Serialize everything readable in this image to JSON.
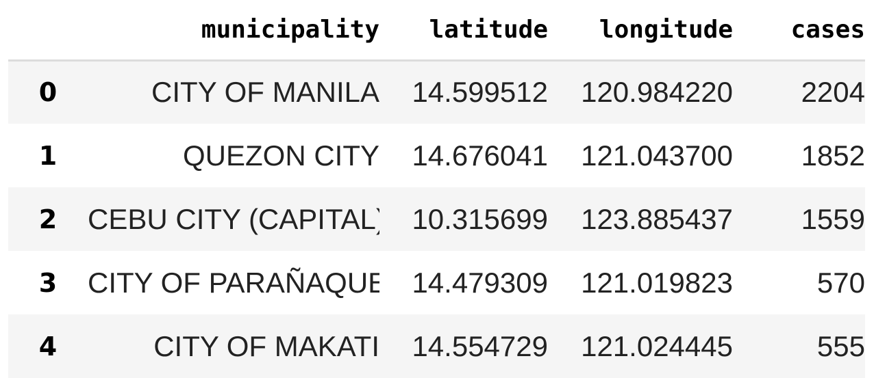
{
  "table": {
    "columns": [
      "",
      "municipality",
      "latitude",
      "longitude",
      "cases"
    ],
    "rows": [
      {
        "index": "0",
        "municipality": "CITY OF MANILA",
        "latitude": "14.599512",
        "longitude": "120.984220",
        "cases": "2204"
      },
      {
        "index": "1",
        "municipality": "QUEZON CITY",
        "latitude": "14.676041",
        "longitude": "121.043700",
        "cases": "1852"
      },
      {
        "index": "2",
        "municipality": "CEBU CITY (CAPITAL)",
        "latitude": "10.315699",
        "longitude": "123.885437",
        "cases": "1559"
      },
      {
        "index": "3",
        "municipality": "CITY OF PARAÑAQUE",
        "latitude": "14.479309",
        "longitude": "121.019823",
        "cases": "570"
      },
      {
        "index": "4",
        "municipality": "CITY OF MAKATI",
        "latitude": "14.554729",
        "longitude": "121.024445",
        "cases": "555"
      }
    ]
  },
  "colors": {
    "stripe": "#f5f5f5",
    "header_rule": "#dcdcdc",
    "text": "#222222"
  }
}
